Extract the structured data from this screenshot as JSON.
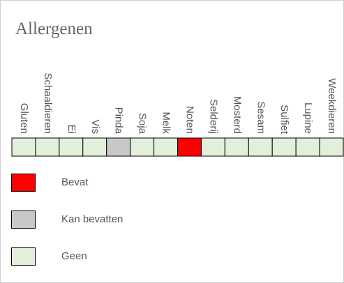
{
  "title": "Allergenen",
  "legend": [
    {
      "label": "Bevat",
      "color": "#ff0000"
    },
    {
      "label": "Kan bevatten",
      "color": "#c8c8c8"
    },
    {
      "label": "Geen",
      "color": "#e2efda"
    }
  ],
  "allergens": [
    {
      "name": "Gluten",
      "status": 2
    },
    {
      "name": "Schaaldieren",
      "status": 2
    },
    {
      "name": "Ei",
      "status": 2
    },
    {
      "name": "Vis",
      "status": 2
    },
    {
      "name": "Pinda",
      "status": 1
    },
    {
      "name": "Soja",
      "status": 2
    },
    {
      "name": "Melk",
      "status": 2
    },
    {
      "name": "Noten",
      "status": 0
    },
    {
      "name": "Selderij",
      "status": 2
    },
    {
      "name": "Mosterd",
      "status": 2
    },
    {
      "name": "Sesam",
      "status": 2
    },
    {
      "name": "Sulfiet",
      "status": 2
    },
    {
      "name": "Lupine",
      "status": 2
    },
    {
      "name": "Weekdieren",
      "status": 2
    }
  ]
}
